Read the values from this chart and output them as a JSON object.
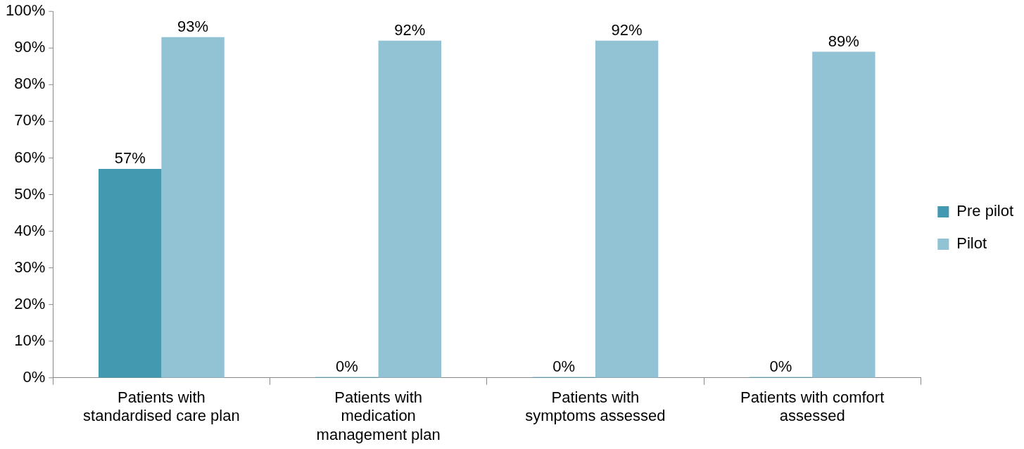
{
  "chart_data": {
    "type": "bar",
    "categories": [
      "Patients with standardised care plan",
      "Patients with medication management plan",
      "Patients with symptoms assessed",
      "Patients with comfort assessed"
    ],
    "series": [
      {
        "name": "Pre pilot",
        "color": "#4399b0",
        "values": [
          57,
          0,
          0,
          0
        ],
        "value_labels": [
          "57%",
          "0%",
          "0%",
          "0%"
        ]
      },
      {
        "name": "Pilot",
        "color": "#92c3d5",
        "values": [
          93,
          92,
          92,
          89
        ],
        "value_labels": [
          "93%",
          "92%",
          "92%",
          "89%"
        ]
      }
    ],
    "ylim": [
      0,
      100
    ],
    "yticks": [
      {
        "value": 0,
        "label": "0%"
      },
      {
        "value": 10,
        "label": "10%"
      },
      {
        "value": 20,
        "label": "20%"
      },
      {
        "value": 30,
        "label": "30%"
      },
      {
        "value": 40,
        "label": "40%"
      },
      {
        "value": 50,
        "label": "50%"
      },
      {
        "value": 60,
        "label": "60%"
      },
      {
        "value": 70,
        "label": "70%"
      },
      {
        "value": 80,
        "label": "80%"
      },
      {
        "value": 90,
        "label": "90%"
      },
      {
        "value": 100,
        "label": "100%"
      }
    ],
    "legend": "right"
  }
}
